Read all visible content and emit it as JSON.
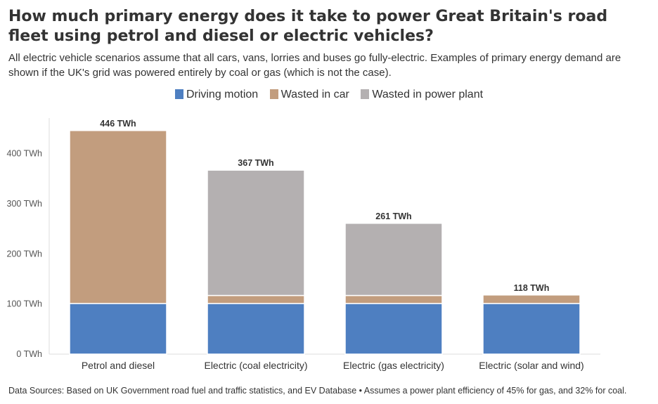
{
  "title": "How much primary energy does it take to power Great Britain's road fleet using petrol and diesel or electric vehicles?",
  "subtitle": "All electric vehicle scenarios assume that all cars, vans, lorries and buses go fully-electric. Examples of primary energy demand are shown if the UK's grid was powered entirely by coal or gas (which is not the case).",
  "footer": "Data Sources: Based on UK Government road fuel and traffic statistics, and EV Database • Assumes a power plant efficiency of 45% for gas, and 32% for coal.",
  "chart_data": {
    "type": "bar",
    "stacked": true,
    "categories": [
      "Petrol and diesel",
      "Electric (coal electricity)",
      "Electric (gas electricity)",
      "Electric (solar and wind)"
    ],
    "series": [
      {
        "name": "Driving motion",
        "color": "#4e7fc1",
        "values": [
          101,
          101,
          101,
          101
        ]
      },
      {
        "name": "Wasted in car",
        "color": "#c29d7e",
        "values": [
          345,
          16,
          16,
          17
        ]
      },
      {
        "name": "Wasted in power plant",
        "color": "#b4b0b1",
        "values": [
          0,
          250,
          144,
          0
        ]
      }
    ],
    "totals": [
      446,
      367,
      261,
      118
    ],
    "total_labels": [
      "446 TWh",
      "367 TWh",
      "261 TWh",
      "118 TWh"
    ],
    "y_ticks": [
      0,
      100,
      200,
      300,
      400
    ],
    "y_tick_labels": [
      "0 TWh",
      "100 TWh",
      "200 TWh",
      "300 TWh",
      "400 TWh"
    ],
    "ylim": [
      0,
      470
    ],
    "legend_position": "top-center",
    "grid": false
  }
}
